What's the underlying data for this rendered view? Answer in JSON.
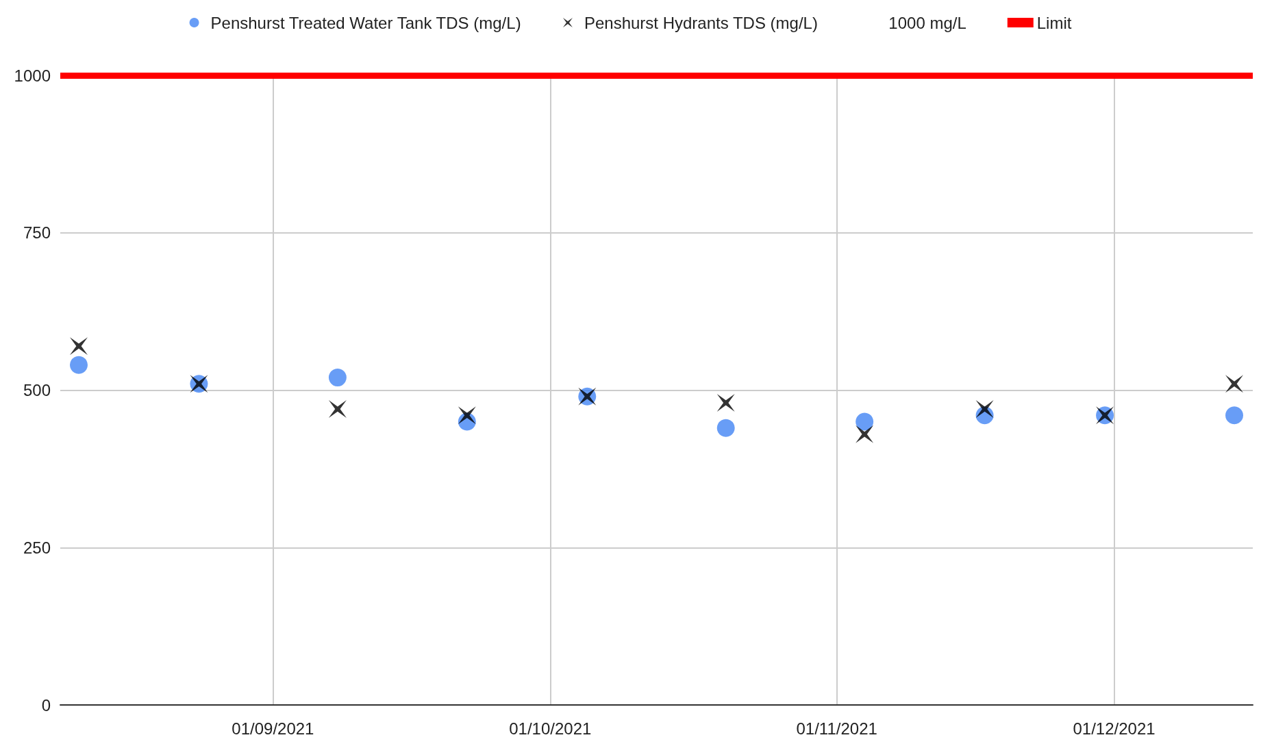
{
  "chart_data": {
    "type": "scatter",
    "x": [
      "2021-08-11",
      "2021-08-24",
      "2021-09-08",
      "2021-09-22",
      "2021-10-05",
      "2021-10-20",
      "2021-11-04",
      "2021-11-17",
      "2021-11-30",
      "2021-12-14"
    ],
    "series": [
      {
        "name": "Penshurst Treated Water Tank TDS (mg/L)",
        "color": "#4285f4",
        "marker": "circle",
        "values": [
          540,
          510,
          520,
          450,
          490,
          440,
          450,
          460,
          460,
          460
        ]
      },
      {
        "name": "Penshurst Hydrants TDS (mg/L)",
        "color": "#000000",
        "marker": "cross",
        "values": [
          570,
          510,
          470,
          460,
          490,
          480,
          430,
          470,
          460,
          510
        ]
      }
    ],
    "annotations": [
      "1000 mg/L"
    ],
    "ref_lines": [
      {
        "axis": "y",
        "value": 1000,
        "label": "Limit",
        "color": "#ff0000"
      }
    ],
    "xlim": [
      "2021-08-09",
      "2021-12-16"
    ],
    "xticks": [
      {
        "value": "2021-09-01",
        "label": "01/09/2021"
      },
      {
        "value": "2021-10-01",
        "label": "01/10/2021"
      },
      {
        "value": "2021-11-01",
        "label": "01/11/2021"
      },
      {
        "value": "2021-12-01",
        "label": "01/12/2021"
      }
    ],
    "ylim": [
      0,
      1000
    ],
    "yticks": [
      0,
      250,
      500,
      750,
      1000
    ],
    "grid": true,
    "legend": "top"
  }
}
